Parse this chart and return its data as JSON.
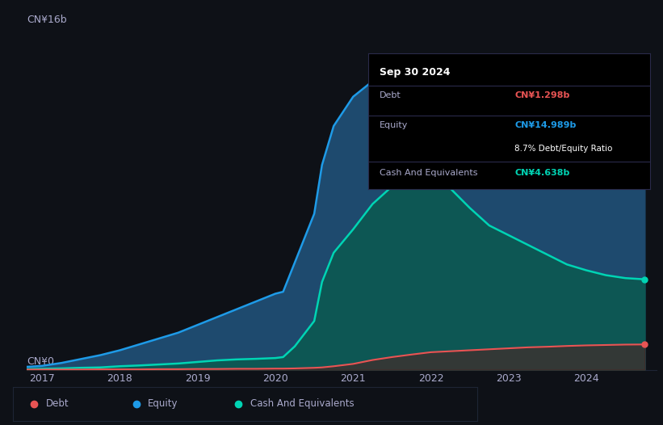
{
  "background_color": "#0e1117",
  "plot_bg_color": "#0e1117",
  "y_label_top": "CN¥16b",
  "y_label_bottom": "CN¥0",
  "x_ticks": [
    "2017",
    "2018",
    "2019",
    "2020",
    "2021",
    "2022",
    "2023",
    "2024"
  ],
  "equity_color": "#1e9be8",
  "debt_color": "#e85454",
  "cash_color": "#00d4b4",
  "equity_fill": "#1e4a6e",
  "cash_fill": "#0a5a50",
  "debt_fill": "#5a1a1a",
  "grid_color": "#1e2535",
  "text_color": "#aaaacc",
  "years": [
    2016.8,
    2017.0,
    2017.25,
    2017.5,
    2017.75,
    2018.0,
    2018.25,
    2018.5,
    2018.75,
    2019.0,
    2019.25,
    2019.5,
    2019.75,
    2020.0,
    2020.1,
    2020.25,
    2020.5,
    2020.6,
    2020.75,
    2021.0,
    2021.25,
    2021.5,
    2021.75,
    2022.0,
    2022.25,
    2022.5,
    2022.75,
    2023.0,
    2023.25,
    2023.5,
    2023.75,
    2024.0,
    2024.25,
    2024.5,
    2024.75
  ],
  "equity": [
    0.15,
    0.2,
    0.35,
    0.55,
    0.75,
    1.0,
    1.3,
    1.6,
    1.9,
    2.3,
    2.7,
    3.1,
    3.5,
    3.9,
    4.0,
    5.5,
    8.0,
    10.5,
    12.5,
    14.0,
    14.8,
    15.1,
    15.3,
    15.4,
    15.35,
    15.2,
    15.1,
    14.9,
    14.85,
    14.9,
    15.0,
    15.05,
    15.0,
    15.0,
    14.989
  ],
  "debt": [
    0.01,
    0.01,
    0.01,
    0.01,
    0.02,
    0.02,
    0.02,
    0.03,
    0.03,
    0.04,
    0.04,
    0.05,
    0.05,
    0.06,
    0.06,
    0.07,
    0.1,
    0.12,
    0.18,
    0.3,
    0.5,
    0.65,
    0.78,
    0.9,
    0.95,
    1.0,
    1.05,
    1.1,
    1.15,
    1.18,
    1.22,
    1.25,
    1.27,
    1.29,
    1.298
  ],
  "cash": [
    0.03,
    0.05,
    0.07,
    0.1,
    0.12,
    0.18,
    0.22,
    0.27,
    0.32,
    0.4,
    0.48,
    0.53,
    0.56,
    0.6,
    0.65,
    1.2,
    2.5,
    4.5,
    6.0,
    7.2,
    8.5,
    9.4,
    9.9,
    10.0,
    9.3,
    8.3,
    7.4,
    6.9,
    6.4,
    5.9,
    5.4,
    5.1,
    4.85,
    4.7,
    4.638
  ],
  "ylim": [
    0,
    17
  ],
  "xlim": [
    2016.8,
    2024.9
  ],
  "tooltip_date": "Sep 30 2024",
  "tooltip_debt_label": "Debt",
  "tooltip_debt_value": "CN¥1.298b",
  "tooltip_equity_label": "Equity",
  "tooltip_equity_value": "CN¥14.989b",
  "tooltip_ratio": "8.7% Debt/Equity Ratio",
  "tooltip_cash_label": "Cash And Equivalents",
  "tooltip_cash_value": "CN¥4.638b",
  "legend_items": [
    "Debt",
    "Equity",
    "Cash And Equivalents"
  ]
}
